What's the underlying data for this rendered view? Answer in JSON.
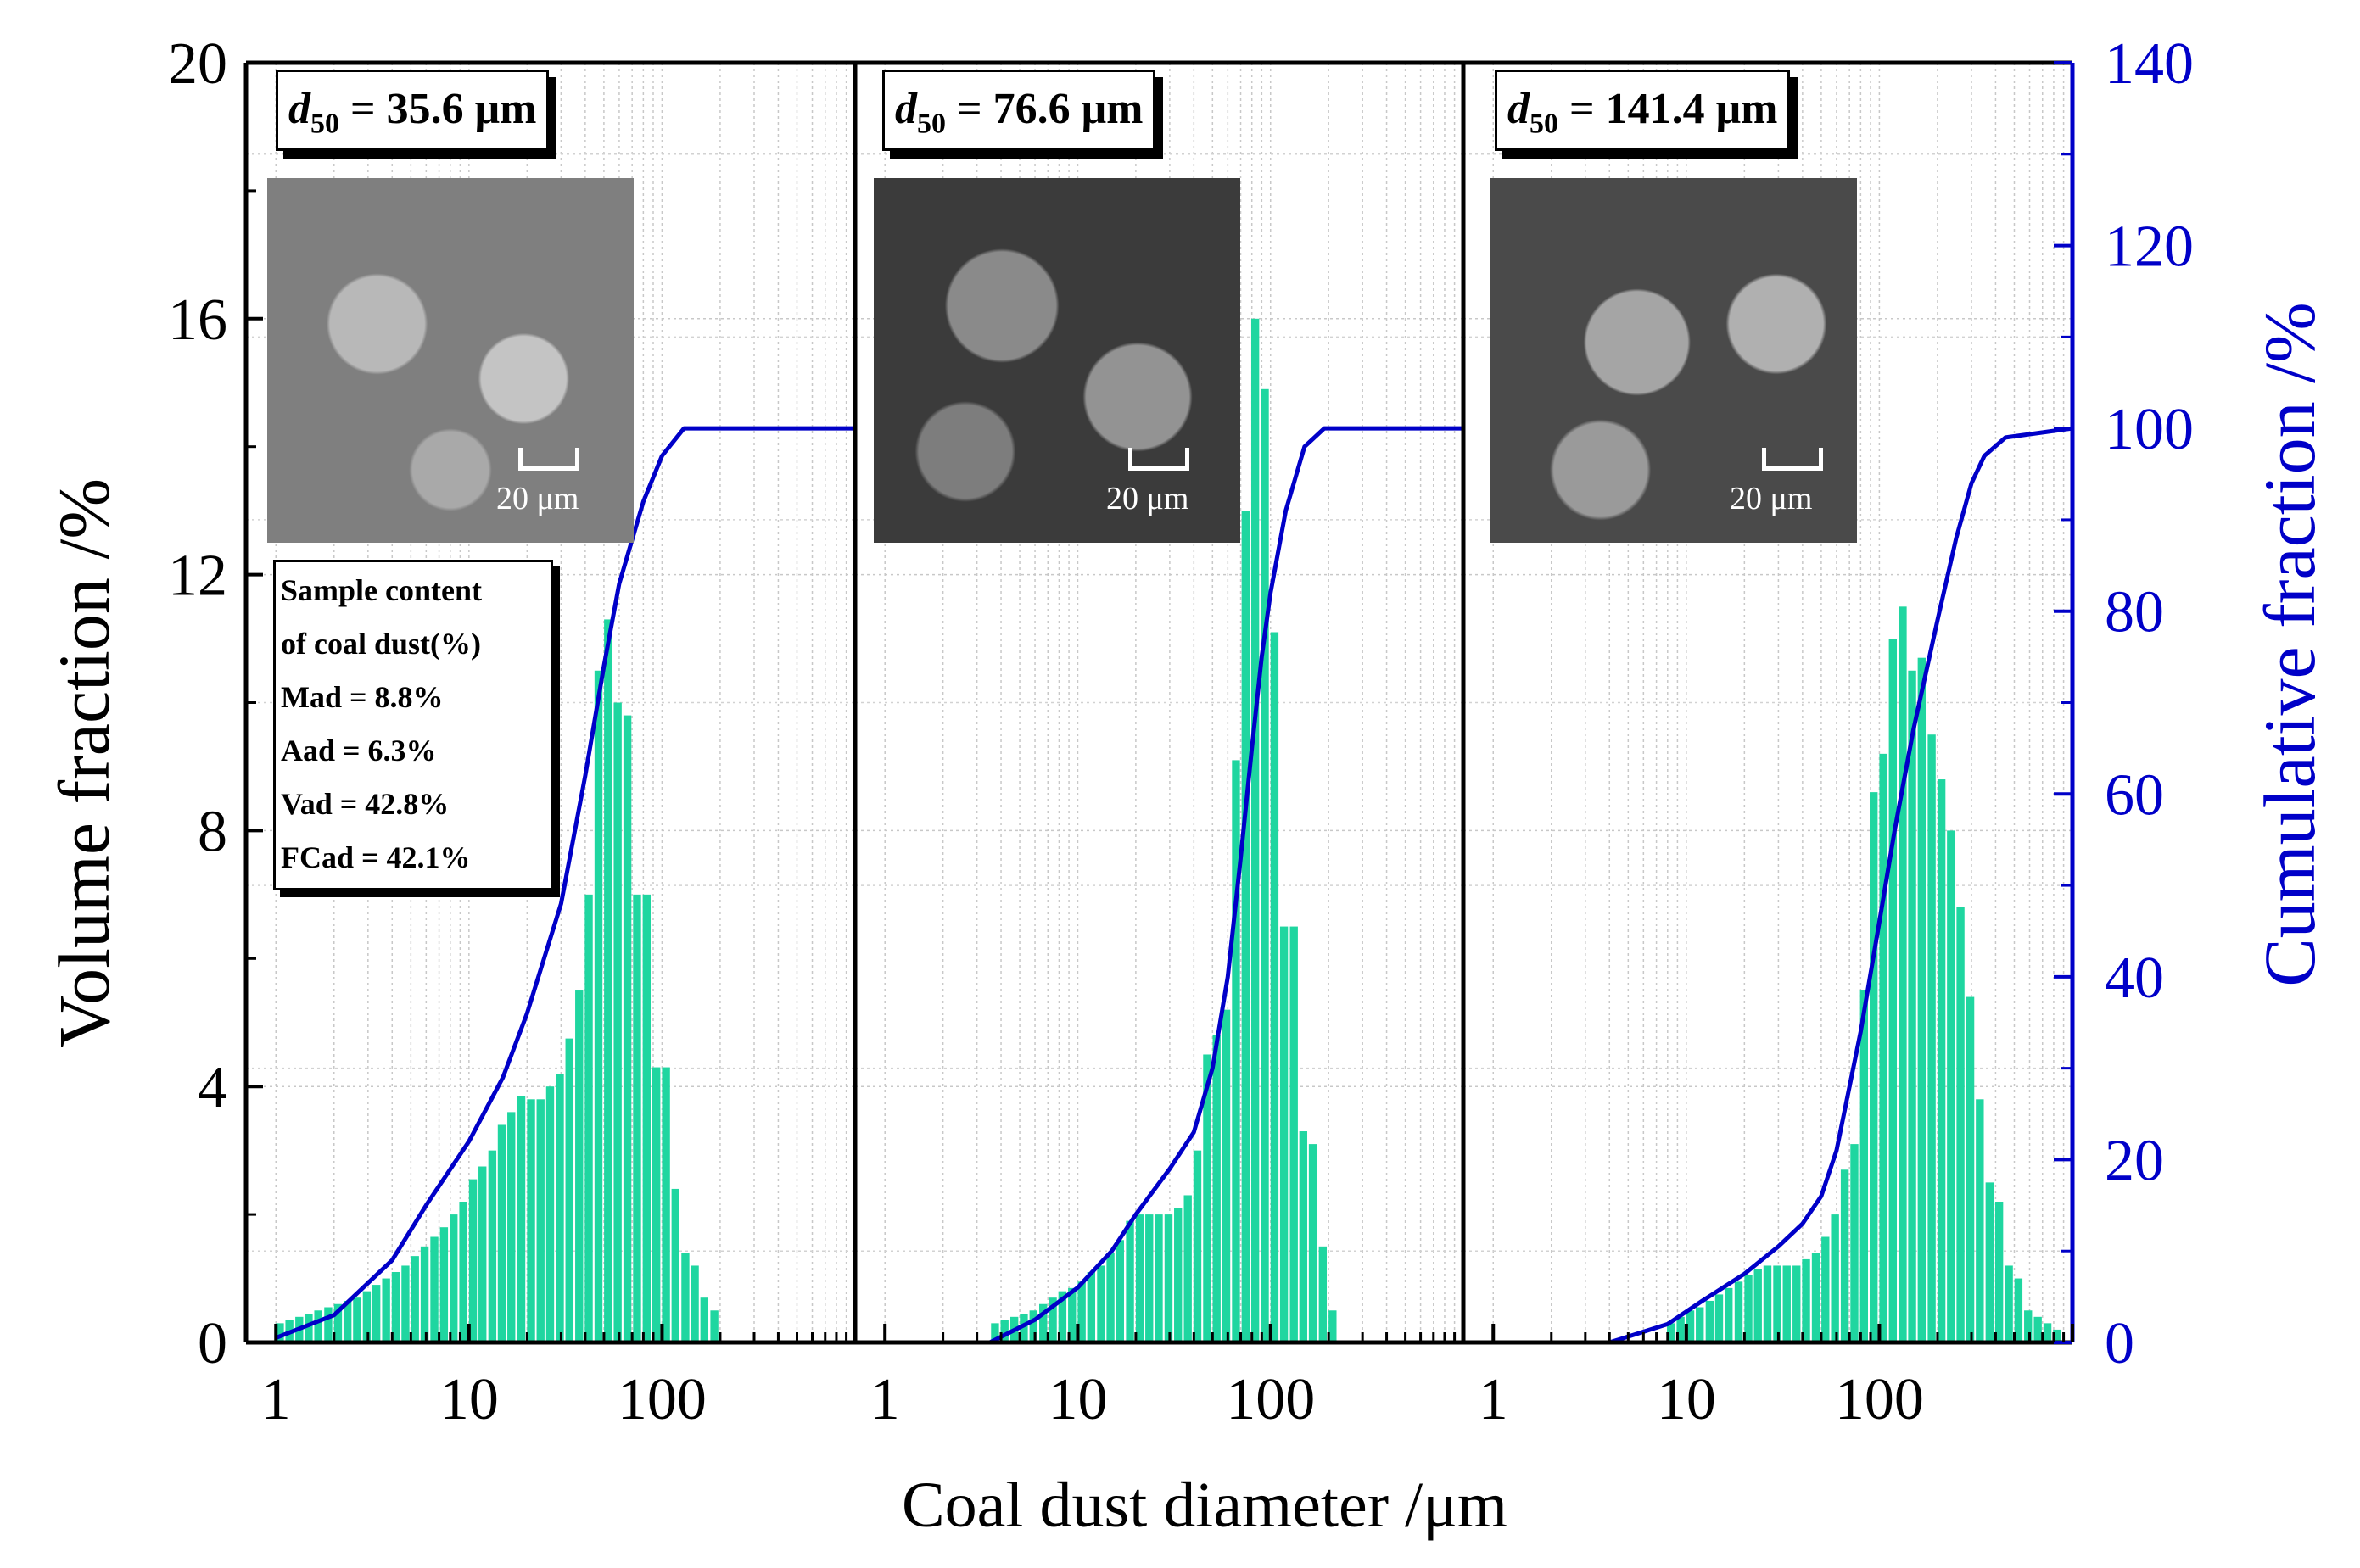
{
  "chart_data": {
    "type": "bar+line",
    "xlabel": "Coal dust diameter /μm",
    "ylabel_left": "Volume fraction /%",
    "ylabel_right": "Cumulative fraction /%",
    "x_scale": "log",
    "x_ticks": [
      "1",
      "10",
      "100"
    ],
    "xlim": [
      0.7,
      1000
    ],
    "y_left_ticks": [
      "0",
      "4",
      "8",
      "12",
      "16",
      "20"
    ],
    "ylim_left": [
      0,
      20
    ],
    "y_right_ticks": [
      "0",
      "20",
      "40",
      "60",
      "80",
      "100",
      "120",
      "140"
    ],
    "ylim_right": [
      0,
      140
    ],
    "bar_color": "#1fd6a0",
    "line_color": "#0000c8",
    "right_axis_color": "#0000c8",
    "panels": [
      {
        "d50_label": "= 35.6 μm",
        "scale_label": "20 μm",
        "bars": [
          {
            "x": 1.0,
            "v": 0.3
          },
          {
            "x": 1.12,
            "v": 0.35
          },
          {
            "x": 1.26,
            "v": 0.4
          },
          {
            "x": 1.41,
            "v": 0.45
          },
          {
            "x": 1.58,
            "v": 0.5
          },
          {
            "x": 1.78,
            "v": 0.55
          },
          {
            "x": 2.0,
            "v": 0.6
          },
          {
            "x": 2.24,
            "v": 0.65
          },
          {
            "x": 2.51,
            "v": 0.7
          },
          {
            "x": 2.82,
            "v": 0.8
          },
          {
            "x": 3.16,
            "v": 0.9
          },
          {
            "x": 3.55,
            "v": 1.0
          },
          {
            "x": 3.98,
            "v": 1.1
          },
          {
            "x": 4.47,
            "v": 1.2
          },
          {
            "x": 5.01,
            "v": 1.35
          },
          {
            "x": 5.62,
            "v": 1.5
          },
          {
            "x": 6.31,
            "v": 1.65
          },
          {
            "x": 7.08,
            "v": 1.8
          },
          {
            "x": 7.94,
            "v": 2.0
          },
          {
            "x": 8.91,
            "v": 2.2
          },
          {
            "x": 10.0,
            "v": 2.55
          },
          {
            "x": 11.2,
            "v": 2.75
          },
          {
            "x": 12.6,
            "v": 3.0
          },
          {
            "x": 14.1,
            "v": 3.4
          },
          {
            "x": 15.8,
            "v": 3.6
          },
          {
            "x": 17.8,
            "v": 3.85
          },
          {
            "x": 20.0,
            "v": 3.8
          },
          {
            "x": 22.4,
            "v": 3.8
          },
          {
            "x": 25.1,
            "v": 4.0
          },
          {
            "x": 28.2,
            "v": 4.2
          },
          {
            "x": 31.6,
            "v": 4.75
          },
          {
            "x": 35.5,
            "v": 5.5
          },
          {
            "x": 39.8,
            "v": 7.0
          },
          {
            "x": 44.7,
            "v": 10.5
          },
          {
            "x": 50.1,
            "v": 11.3
          },
          {
            "x": 56.2,
            "v": 10.0
          },
          {
            "x": 63.1,
            "v": 9.8
          },
          {
            "x": 70.8,
            "v": 7.0
          },
          {
            "x": 79.4,
            "v": 7.0
          },
          {
            "x": 89.1,
            "v": 4.3
          },
          {
            "x": 100,
            "v": 4.3
          },
          {
            "x": 112,
            "v": 2.4
          },
          {
            "x": 126,
            "v": 1.4
          },
          {
            "x": 141,
            "v": 1.2
          },
          {
            "x": 158,
            "v": 0.7
          },
          {
            "x": 178,
            "v": 0.5
          }
        ],
        "cumulative": [
          {
            "x": 1.0,
            "c": 0.5
          },
          {
            "x": 2.0,
            "c": 3
          },
          {
            "x": 4.0,
            "c": 9
          },
          {
            "x": 6.0,
            "c": 15
          },
          {
            "x": 10.0,
            "c": 22
          },
          {
            "x": 15.0,
            "c": 29
          },
          {
            "x": 20.0,
            "c": 36
          },
          {
            "x": 30.0,
            "c": 48
          },
          {
            "x": 40.0,
            "c": 62
          },
          {
            "x": 50.0,
            "c": 74
          },
          {
            "x": 60.0,
            "c": 83
          },
          {
            "x": 80.0,
            "c": 92
          },
          {
            "x": 100,
            "c": 97
          },
          {
            "x": 130,
            "c": 100
          },
          {
            "x": 200,
            "c": 100
          },
          {
            "x": 1000,
            "c": 100
          }
        ],
        "info_box": [
          "Sample content",
          "of coal dust(%)",
          "Mad = 8.8%",
          "Aad = 6.3%",
          "Vad = 42.8%",
          "FCad = 42.1%"
        ]
      },
      {
        "d50_label": "= 76.6 μm",
        "scale_label": "20 μm",
        "bars": [
          {
            "x": 3.55,
            "v": 0.3
          },
          {
            "x": 3.98,
            "v": 0.35
          },
          {
            "x": 4.47,
            "v": 0.4
          },
          {
            "x": 5.01,
            "v": 0.45
          },
          {
            "x": 5.62,
            "v": 0.5
          },
          {
            "x": 6.31,
            "v": 0.6
          },
          {
            "x": 7.08,
            "v": 0.7
          },
          {
            "x": 7.94,
            "v": 0.8
          },
          {
            "x": 8.91,
            "v": 0.85
          },
          {
            "x": 10.0,
            "v": 0.95
          },
          {
            "x": 11.2,
            "v": 1.1
          },
          {
            "x": 12.6,
            "v": 1.2
          },
          {
            "x": 14.1,
            "v": 1.4
          },
          {
            "x": 15.8,
            "v": 1.6
          },
          {
            "x": 17.8,
            "v": 1.9
          },
          {
            "x": 20.0,
            "v": 2.0
          },
          {
            "x": 22.4,
            "v": 2.0
          },
          {
            "x": 25.1,
            "v": 2.0
          },
          {
            "x": 28.2,
            "v": 2.0
          },
          {
            "x": 31.6,
            "v": 2.1
          },
          {
            "x": 35.5,
            "v": 2.3
          },
          {
            "x": 39.8,
            "v": 3.0
          },
          {
            "x": 44.7,
            "v": 4.5
          },
          {
            "x": 50.1,
            "v": 4.8
          },
          {
            "x": 56.2,
            "v": 5.2
          },
          {
            "x": 63.1,
            "v": 9.1
          },
          {
            "x": 70.8,
            "v": 13.0
          },
          {
            "x": 79.4,
            "v": 16.0
          },
          {
            "x": 89.1,
            "v": 14.9
          },
          {
            "x": 100,
            "v": 11.1
          },
          {
            "x": 112,
            "v": 6.5
          },
          {
            "x": 126,
            "v": 6.5
          },
          {
            "x": 141,
            "v": 3.3
          },
          {
            "x": 158,
            "v": 3.1
          },
          {
            "x": 178,
            "v": 1.5
          },
          {
            "x": 200,
            "v": 0.5
          }
        ],
        "cumulative": [
          {
            "x": 3.5,
            "c": 0
          },
          {
            "x": 6.0,
            "c": 2.5
          },
          {
            "x": 10.0,
            "c": 6
          },
          {
            "x": 15.0,
            "c": 10
          },
          {
            "x": 20.0,
            "c": 14
          },
          {
            "x": 30.0,
            "c": 19
          },
          {
            "x": 40.0,
            "c": 23
          },
          {
            "x": 50.0,
            "c": 30
          },
          {
            "x": 60.0,
            "c": 40
          },
          {
            "x": 70.0,
            "c": 53
          },
          {
            "x": 80.0,
            "c": 65
          },
          {
            "x": 90.0,
            "c": 75
          },
          {
            "x": 100,
            "c": 82
          },
          {
            "x": 120,
            "c": 91
          },
          {
            "x": 150,
            "c": 98
          },
          {
            "x": 190,
            "c": 100
          },
          {
            "x": 1000,
            "c": 100
          }
        ]
      },
      {
        "d50_label": "= 141.4 μm",
        "scale_label": "20 μm",
        "bars": [
          {
            "x": 7.94,
            "v": 0.3
          },
          {
            "x": 8.91,
            "v": 0.4
          },
          {
            "x": 10.0,
            "v": 0.5
          },
          {
            "x": 11.2,
            "v": 0.55
          },
          {
            "x": 12.6,
            "v": 0.65
          },
          {
            "x": 14.1,
            "v": 0.75
          },
          {
            "x": 15.8,
            "v": 0.85
          },
          {
            "x": 17.8,
            "v": 0.95
          },
          {
            "x": 20.0,
            "v": 1.05
          },
          {
            "x": 22.4,
            "v": 1.15
          },
          {
            "x": 25.1,
            "v": 1.2
          },
          {
            "x": 28.2,
            "v": 1.2
          },
          {
            "x": 31.6,
            "v": 1.2
          },
          {
            "x": 35.5,
            "v": 1.2
          },
          {
            "x": 39.8,
            "v": 1.3
          },
          {
            "x": 44.7,
            "v": 1.4
          },
          {
            "x": 50.1,
            "v": 1.65
          },
          {
            "x": 56.2,
            "v": 2.0
          },
          {
            "x": 63.1,
            "v": 2.7
          },
          {
            "x": 70.8,
            "v": 3.1
          },
          {
            "x": 79.4,
            "v": 5.5
          },
          {
            "x": 89.1,
            "v": 8.6
          },
          {
            "x": 100,
            "v": 9.2
          },
          {
            "x": 112,
            "v": 11.0
          },
          {
            "x": 126,
            "v": 11.5
          },
          {
            "x": 141,
            "v": 10.5
          },
          {
            "x": 158,
            "v": 10.7
          },
          {
            "x": 178,
            "v": 9.5
          },
          {
            "x": 200,
            "v": 8.8
          },
          {
            "x": 224,
            "v": 8.0
          },
          {
            "x": 251,
            "v": 6.8
          },
          {
            "x": 282,
            "v": 5.4
          },
          {
            "x": 316,
            "v": 3.8
          },
          {
            "x": 355,
            "v": 2.5
          },
          {
            "x": 398,
            "v": 2.2
          },
          {
            "x": 447,
            "v": 1.2
          },
          {
            "x": 501,
            "v": 1.0
          },
          {
            "x": 562,
            "v": 0.5
          },
          {
            "x": 631,
            "v": 0.4
          },
          {
            "x": 708,
            "v": 0.3
          },
          {
            "x": 794,
            "v": 0.2
          }
        ],
        "cumulative": [
          {
            "x": 4.0,
            "c": 0
          },
          {
            "x": 8.0,
            "c": 2
          },
          {
            "x": 12.0,
            "c": 4.5
          },
          {
            "x": 20.0,
            "c": 7.5
          },
          {
            "x": 30.0,
            "c": 10.5
          },
          {
            "x": 40.0,
            "c": 13
          },
          {
            "x": 50.0,
            "c": 16
          },
          {
            "x": 60.0,
            "c": 21
          },
          {
            "x": 80.0,
            "c": 34
          },
          {
            "x": 100,
            "c": 46
          },
          {
            "x": 120,
            "c": 56
          },
          {
            "x": 150,
            "c": 67
          },
          {
            "x": 200,
            "c": 79
          },
          {
            "x": 250,
            "c": 88
          },
          {
            "x": 300,
            "c": 94
          },
          {
            "x": 350,
            "c": 97
          },
          {
            "x": 450,
            "c": 99
          },
          {
            "x": 1000,
            "c": 100
          }
        ]
      }
    ]
  }
}
